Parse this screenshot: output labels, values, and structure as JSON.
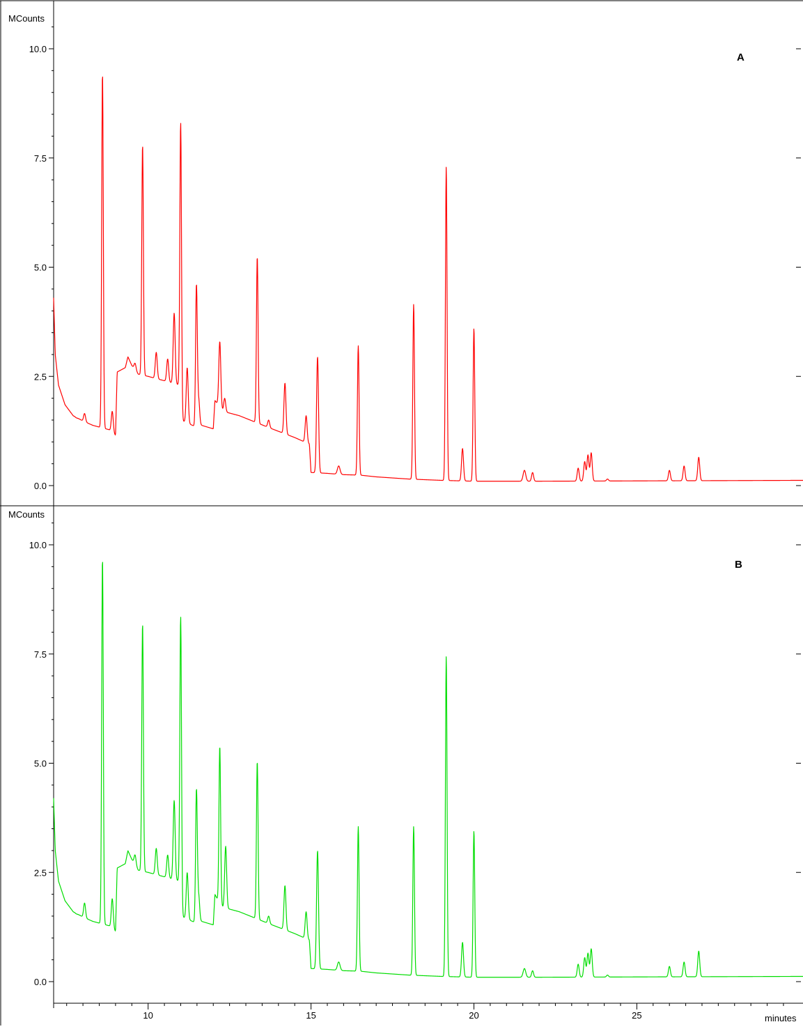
{
  "chart_data": [
    {
      "type": "line",
      "panel_label": "A",
      "ylabel": "MCounts",
      "xlabel": "minutes",
      "xlim": [
        7.1,
        30.1
      ],
      "ylim": [
        -0.45,
        10.8
      ],
      "yticks": [
        "0.0",
        "2.5",
        "5.0",
        "7.5",
        "10.0"
      ],
      "xticks": [
        "10",
        "15",
        "20",
        "25"
      ],
      "color": "#ff0000",
      "baseline": [
        [
          7.1,
          4.3
        ],
        [
          7.15,
          3.0
        ],
        [
          7.25,
          2.3
        ],
        [
          7.45,
          1.85
        ],
        [
          7.7,
          1.6
        ],
        [
          8.0,
          1.48
        ],
        [
          8.3,
          1.38
        ],
        [
          8.8,
          1.28
        ],
        [
          9.0,
          1.15
        ],
        [
          9.05,
          2.6
        ],
        [
          9.3,
          2.7
        ],
        [
          9.38,
          2.95
        ],
        [
          9.5,
          2.75
        ],
        [
          9.7,
          2.55
        ],
        [
          10.0,
          2.5
        ],
        [
          10.5,
          2.4
        ],
        [
          10.95,
          2.3
        ],
        [
          11.0,
          1.5
        ],
        [
          11.45,
          1.35
        ],
        [
          11.5,
          2.0
        ],
        [
          11.55,
          1.4
        ],
        [
          12.0,
          1.3
        ],
        [
          12.05,
          1.95
        ],
        [
          12.15,
          1.85
        ],
        [
          12.3,
          1.7
        ],
        [
          12.8,
          1.6
        ],
        [
          13.3,
          1.45
        ],
        [
          13.8,
          1.3
        ],
        [
          14.5,
          1.1
        ],
        [
          14.95,
          0.95
        ],
        [
          15.0,
          0.3
        ],
        [
          15.5,
          0.28
        ],
        [
          16.0,
          0.25
        ],
        [
          16.5,
          0.24
        ],
        [
          17.0,
          0.2
        ],
        [
          18.0,
          0.15
        ],
        [
          19.0,
          0.12
        ],
        [
          20.0,
          0.1
        ],
        [
          22.0,
          0.1
        ],
        [
          30.1,
          0.12
        ]
      ],
      "peaks": [
        {
          "x": 7.8,
          "y": 1.55,
          "w": 0.03
        },
        {
          "x": 8.05,
          "y": 1.65,
          "w": 0.03
        },
        {
          "x": 8.6,
          "y": 9.45,
          "w": 0.025
        },
        {
          "x": 8.9,
          "y": 1.7,
          "w": 0.03
        },
        {
          "x": 9.6,
          "y": 2.8,
          "w": 0.03
        },
        {
          "x": 9.83,
          "y": 7.8,
          "w": 0.025
        },
        {
          "x": 10.25,
          "y": 3.05,
          "w": 0.03
        },
        {
          "x": 10.6,
          "y": 2.9,
          "w": 0.03
        },
        {
          "x": 10.8,
          "y": 3.95,
          "w": 0.03
        },
        {
          "x": 11.0,
          "y": 8.3,
          "w": 0.025
        },
        {
          "x": 11.2,
          "y": 2.7,
          "w": 0.03
        },
        {
          "x": 11.48,
          "y": 4.55,
          "w": 0.025
        },
        {
          "x": 11.55,
          "y": 2.0,
          "w": 0.03
        },
        {
          "x": 12.2,
          "y": 3.3,
          "w": 0.03
        },
        {
          "x": 12.35,
          "y": 2.0,
          "w": 0.03
        },
        {
          "x": 13.35,
          "y": 5.25,
          "w": 0.025
        },
        {
          "x": 13.7,
          "y": 1.5,
          "w": 0.03
        },
        {
          "x": 14.2,
          "y": 2.35,
          "w": 0.03
        },
        {
          "x": 14.85,
          "y": 1.6,
          "w": 0.03
        },
        {
          "x": 15.2,
          "y": 2.95,
          "w": 0.03
        },
        {
          "x": 15.85,
          "y": 0.45,
          "w": 0.04
        },
        {
          "x": 16.45,
          "y": 3.2,
          "w": 0.025
        },
        {
          "x": 18.15,
          "y": 4.15,
          "w": 0.025
        },
        {
          "x": 19.15,
          "y": 7.3,
          "w": 0.025
        },
        {
          "x": 19.65,
          "y": 0.85,
          "w": 0.03
        },
        {
          "x": 20.0,
          "y": 3.6,
          "w": 0.025
        },
        {
          "x": 21.55,
          "y": 0.35,
          "w": 0.04
        },
        {
          "x": 21.8,
          "y": 0.3,
          "w": 0.03
        },
        {
          "x": 23.2,
          "y": 0.4,
          "w": 0.03
        },
        {
          "x": 23.4,
          "y": 0.55,
          "w": 0.03
        },
        {
          "x": 23.5,
          "y": 0.7,
          "w": 0.03
        },
        {
          "x": 23.6,
          "y": 0.75,
          "w": 0.03
        },
        {
          "x": 24.1,
          "y": 0.15,
          "w": 0.03
        },
        {
          "x": 26.0,
          "y": 0.35,
          "w": 0.03
        },
        {
          "x": 26.45,
          "y": 0.45,
          "w": 0.03
        },
        {
          "x": 26.9,
          "y": 0.65,
          "w": 0.03
        }
      ]
    },
    {
      "type": "line",
      "panel_label": "B",
      "ylabel": "MCounts",
      "xlabel": "minutes",
      "xlim": [
        7.1,
        30.1
      ],
      "ylim": [
        -0.5,
        10.8
      ],
      "yticks": [
        "0.0",
        "2.5",
        "5.0",
        "7.5",
        "10.0"
      ],
      "xticks": [
        "10",
        "15",
        "20",
        "25"
      ],
      "color": "#00dd00",
      "baseline": [
        [
          7.1,
          4.2
        ],
        [
          7.15,
          3.0
        ],
        [
          7.25,
          2.3
        ],
        [
          7.45,
          1.85
        ],
        [
          7.7,
          1.6
        ],
        [
          8.0,
          1.48
        ],
        [
          8.3,
          1.38
        ],
        [
          8.8,
          1.28
        ],
        [
          9.0,
          1.15
        ],
        [
          9.05,
          2.6
        ],
        [
          9.3,
          2.7
        ],
        [
          9.38,
          3.0
        ],
        [
          9.5,
          2.8
        ],
        [
          9.7,
          2.55
        ],
        [
          10.0,
          2.5
        ],
        [
          10.5,
          2.4
        ],
        [
          10.95,
          2.3
        ],
        [
          11.0,
          1.5
        ],
        [
          11.45,
          1.35
        ],
        [
          11.5,
          2.0
        ],
        [
          11.55,
          1.4
        ],
        [
          12.0,
          1.3
        ],
        [
          12.05,
          2.0
        ],
        [
          12.15,
          1.85
        ],
        [
          12.3,
          1.7
        ],
        [
          12.8,
          1.6
        ],
        [
          13.3,
          1.45
        ],
        [
          13.8,
          1.3
        ],
        [
          14.5,
          1.1
        ],
        [
          14.95,
          0.95
        ],
        [
          15.0,
          0.3
        ],
        [
          15.5,
          0.28
        ],
        [
          16.0,
          0.25
        ],
        [
          16.5,
          0.24
        ],
        [
          17.0,
          0.2
        ],
        [
          18.0,
          0.15
        ],
        [
          19.0,
          0.12
        ],
        [
          20.0,
          0.1
        ],
        [
          22.0,
          0.1
        ],
        [
          30.1,
          0.12
        ]
      ],
      "peaks": [
        {
          "x": 7.8,
          "y": 1.55,
          "w": 0.03
        },
        {
          "x": 8.05,
          "y": 1.8,
          "w": 0.03
        },
        {
          "x": 8.6,
          "y": 9.7,
          "w": 0.025
        },
        {
          "x": 8.9,
          "y": 1.9,
          "w": 0.03
        },
        {
          "x": 9.6,
          "y": 2.9,
          "w": 0.03
        },
        {
          "x": 9.83,
          "y": 8.2,
          "w": 0.025
        },
        {
          "x": 10.25,
          "y": 3.05,
          "w": 0.03
        },
        {
          "x": 10.6,
          "y": 2.9,
          "w": 0.03
        },
        {
          "x": 10.8,
          "y": 4.15,
          "w": 0.03
        },
        {
          "x": 11.0,
          "y": 8.35,
          "w": 0.025
        },
        {
          "x": 11.2,
          "y": 2.5,
          "w": 0.03
        },
        {
          "x": 11.48,
          "y": 4.35,
          "w": 0.025
        },
        {
          "x": 11.55,
          "y": 2.0,
          "w": 0.03
        },
        {
          "x": 12.2,
          "y": 5.4,
          "w": 0.025
        },
        {
          "x": 12.38,
          "y": 3.1,
          "w": 0.03
        },
        {
          "x": 13.35,
          "y": 5.05,
          "w": 0.025
        },
        {
          "x": 13.7,
          "y": 1.5,
          "w": 0.03
        },
        {
          "x": 14.2,
          "y": 2.2,
          "w": 0.03
        },
        {
          "x": 14.85,
          "y": 1.6,
          "w": 0.03
        },
        {
          "x": 15.2,
          "y": 3.0,
          "w": 0.03
        },
        {
          "x": 15.85,
          "y": 0.45,
          "w": 0.04
        },
        {
          "x": 16.45,
          "y": 3.55,
          "w": 0.025
        },
        {
          "x": 18.15,
          "y": 3.55,
          "w": 0.025
        },
        {
          "x": 19.15,
          "y": 7.45,
          "w": 0.025
        },
        {
          "x": 19.65,
          "y": 0.9,
          "w": 0.03
        },
        {
          "x": 20.0,
          "y": 3.45,
          "w": 0.025
        },
        {
          "x": 21.55,
          "y": 0.3,
          "w": 0.04
        },
        {
          "x": 21.8,
          "y": 0.25,
          "w": 0.03
        },
        {
          "x": 23.2,
          "y": 0.4,
          "w": 0.03
        },
        {
          "x": 23.4,
          "y": 0.55,
          "w": 0.03
        },
        {
          "x": 23.5,
          "y": 0.65,
          "w": 0.03
        },
        {
          "x": 23.6,
          "y": 0.75,
          "w": 0.03
        },
        {
          "x": 24.1,
          "y": 0.15,
          "w": 0.03
        },
        {
          "x": 26.0,
          "y": 0.35,
          "w": 0.03
        },
        {
          "x": 26.45,
          "y": 0.45,
          "w": 0.03
        },
        {
          "x": 26.9,
          "y": 0.7,
          "w": 0.03
        }
      ]
    }
  ]
}
